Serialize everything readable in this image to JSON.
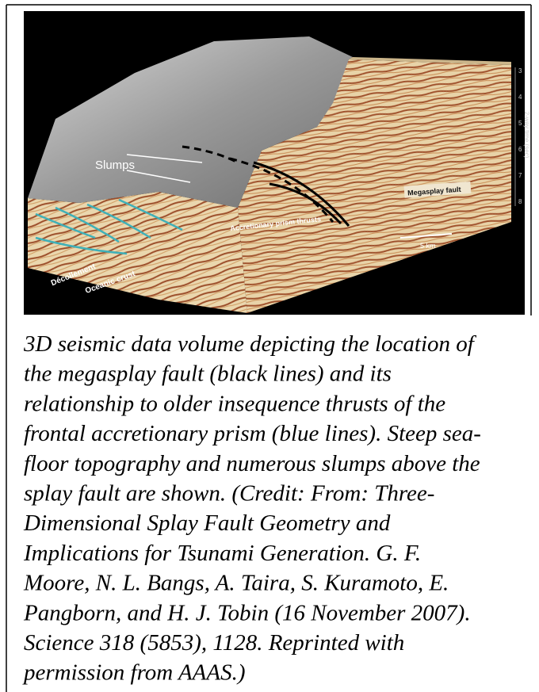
{
  "figure": {
    "labels": {
      "slumps": "Slumps",
      "megasplay_fault": "Megasplay fault",
      "accretionary_prism_thrusts": "Accretionary prism thrusts",
      "decollement": "Décollement",
      "oceanic_crust": "Oceanic crust",
      "scale_bar": "5 km",
      "time_axis_title": "2-way time (sec)",
      "time_ticks": [
        "3",
        "4",
        "5",
        "6",
        "7",
        "8"
      ]
    },
    "caption": {
      "lines": [
        "3D seismic data volume depicting the location of",
        "the megasplay fault (black lines) and its",
        "relationship to older insequence thrusts of the",
        "frontal accretionary prism (blue lines). Steep sea-",
        "floor topography and numerous slumps above the",
        "splay fault are shown. (Credit: From: Three-",
        "Dimensional Splay Fault Geometry and",
        "Implications for Tsunami Generation. G. F.",
        "Moore, N. L. Bangs, A. Taira, S. Kuramoto, E.",
        "Pangborn, and H. J. Tobin (16 November 2007).",
        "Science 318 (5853), 1128. Reprinted with",
        "permission from AAAS.)"
      ]
    }
  }
}
